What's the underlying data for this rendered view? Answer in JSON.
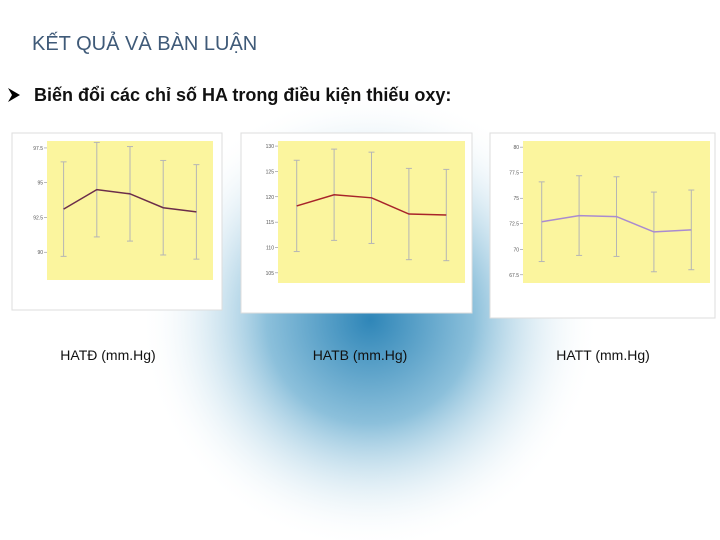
{
  "header": {
    "title": "KẾT QUẢ VÀ BÀN LUẬN"
  },
  "bullet": "Biến đổi các chỉ số HA trong điều kiện thiếu oxy:",
  "panels": [
    {
      "label": "HATĐ (mm.Hg)",
      "chart": {
        "type": "line",
        "color": "#6b2d4a",
        "values": [
          93.1,
          94.5,
          94.2,
          93.2,
          92.9
        ],
        "errors": [
          3.4,
          3.4,
          3.4,
          3.4,
          3.4
        ],
        "ylim": [
          88,
          98
        ],
        "yticks": [
          90,
          92.5,
          95,
          97.5
        ]
      }
    },
    {
      "label": "HATB (mm.Hg)",
      "chart": {
        "type": "line",
        "color": "#a8242a",
        "values": [
          118.2,
          120.4,
          119.8,
          116.6,
          116.4
        ],
        "errors": [
          9,
          9,
          9,
          9,
          9
        ],
        "ylim": [
          103,
          131
        ],
        "yticks": [
          105,
          110,
          115,
          120,
          125,
          130
        ]
      }
    },
    {
      "label": "HATT (mm.Hg)",
      "chart": {
        "type": "line",
        "color": "#a98bd0",
        "values": [
          72.7,
          73.3,
          73.2,
          71.7,
          71.9
        ],
        "errors": [
          3.9,
          3.9,
          3.9,
          3.9,
          3.9
        ],
        "ylim": [
          66.7,
          80.6
        ],
        "yticks": [
          67.5,
          70,
          72.5,
          75,
          77.5,
          80
        ]
      }
    }
  ]
}
